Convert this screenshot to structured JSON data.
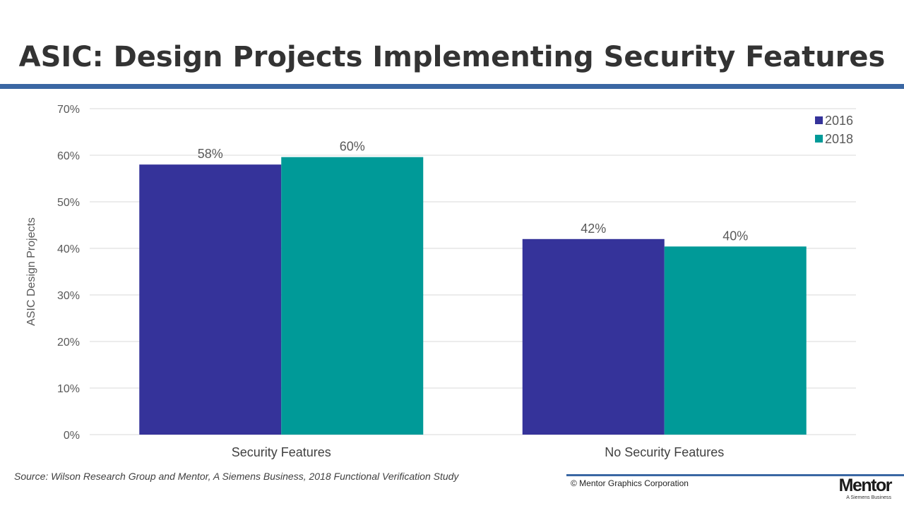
{
  "slide": {
    "title": "ASIC: Design Projects Implementing Security Features",
    "source": "Source:  Wilson Research Group and Mentor, A Siemens Business, 2018 Functional Verification Study",
    "copyright": "© Mentor Graphics Corporation",
    "logo_text": "Mentor",
    "logo_sub": "A Siemens Business"
  },
  "colors": {
    "title_rule": "#3a67a3",
    "series_2016": "#35339a",
    "series_2018": "#009a98",
    "gridline": "#d9d9d9"
  },
  "chart_data": {
    "type": "bar",
    "title": "",
    "xlabel": "",
    "ylabel": "ASIC Design Projects",
    "categories": [
      "Security Features",
      "No Security Features"
    ],
    "series": [
      {
        "name": "2016",
        "values": [
          0.58,
          0.42
        ],
        "labels": [
          "58%",
          "42%"
        ],
        "color": "#35339a"
      },
      {
        "name": "2018",
        "values": [
          0.596,
          0.404
        ],
        "labels": [
          "60%",
          "40%"
        ],
        "color": "#009a98"
      }
    ],
    "ylim": [
      0,
      0.7
    ],
    "yticks": [
      0,
      0.1,
      0.2,
      0.3,
      0.4,
      0.5,
      0.6,
      0.7
    ],
    "ytick_labels": [
      "0%",
      "10%",
      "20%",
      "30%",
      "40%",
      "50%",
      "60%",
      "70%"
    ],
    "grid": true,
    "legend_position": "top-right"
  }
}
